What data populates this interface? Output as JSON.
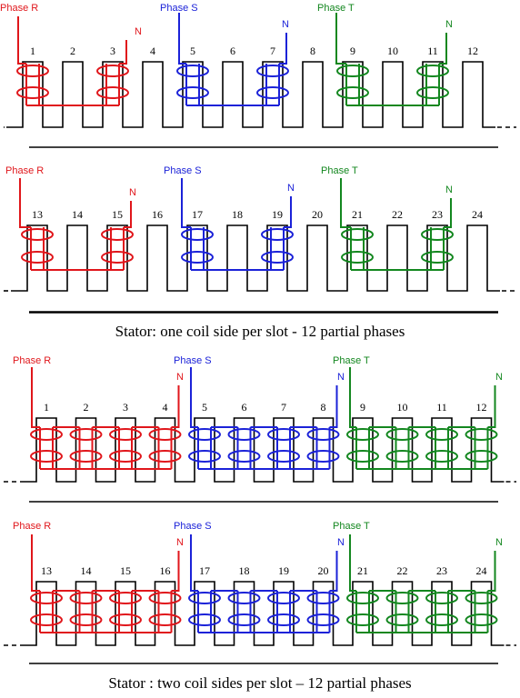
{
  "colors": {
    "R": "#e0161b",
    "S": "#1b22d8",
    "T": "#13871f",
    "frame": "#000000"
  },
  "captions": {
    "one": "Stator: one coil side per slot - 12 partial phases",
    "two": "Stator : two coil sides per slot – 12 partial phases"
  },
  "neutral_label": "N",
  "panels": [
    {
      "slots": [
        "1",
        "2",
        "3",
        "4",
        "5",
        "6",
        "7",
        "8",
        "9",
        "10",
        "11",
        "12"
      ],
      "phase_labels": [
        {
          "phase": "R",
          "text": "Phase R"
        },
        {
          "phase": "S",
          "text": "Phase S"
        },
        {
          "phase": "T",
          "text": "Phase T"
        }
      ]
    },
    {
      "slots": [
        "13",
        "14",
        "15",
        "16",
        "17",
        "18",
        "19",
        "20",
        "21",
        "22",
        "23",
        "24"
      ],
      "phase_labels": [
        {
          "phase": "R",
          "text": "Phase R"
        },
        {
          "phase": "S",
          "text": "Phase S"
        },
        {
          "phase": "T",
          "text": "Phase T"
        }
      ]
    },
    {
      "slots": [
        "1",
        "2",
        "3",
        "4",
        "5",
        "6",
        "7",
        "8",
        "9",
        "10",
        "11",
        "12"
      ],
      "phase_labels": [
        {
          "phase": "R",
          "text": "Phase R"
        },
        {
          "phase": "S",
          "text": "Phase S"
        },
        {
          "phase": "T",
          "text": "Phase T"
        }
      ]
    },
    {
      "slots": [
        "13",
        "14",
        "15",
        "16",
        "17",
        "18",
        "19",
        "20",
        "21",
        "22",
        "23",
        "24"
      ],
      "phase_labels": [
        {
          "phase": "R",
          "text": "Phase R"
        },
        {
          "phase": "S",
          "text": "Phase S"
        },
        {
          "phase": "T",
          "text": "Phase T"
        }
      ]
    }
  ]
}
